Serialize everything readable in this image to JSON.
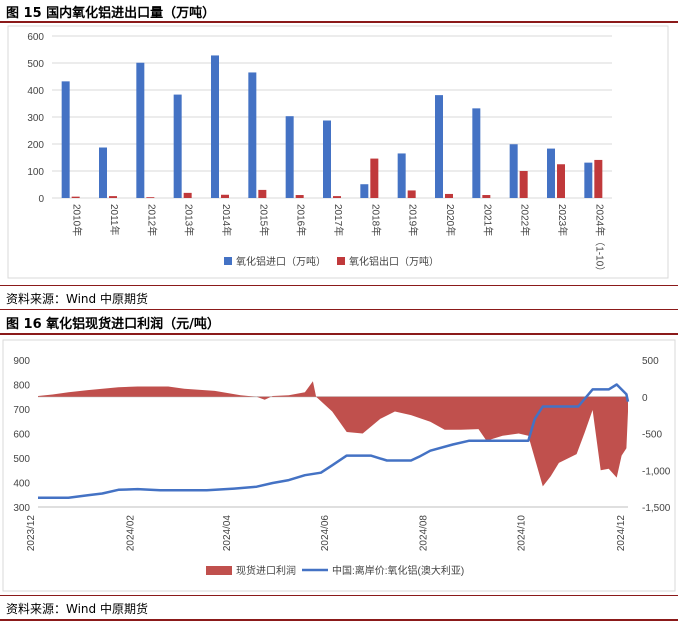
{
  "fig15": {
    "title": "图 15  国内氧化铝进出口量（万吨）",
    "source": "资料来源：Wind 中原期货"
  },
  "fig16": {
    "title": "图 16  氧化铝现货进口利润（元/吨）",
    "source": "资料来源：Wind 中原期货"
  },
  "colors": {
    "rule": "#8b1a1a",
    "blue": "#4472c4",
    "red": "#c0393b",
    "area": "#c0504d"
  },
  "chart_data": [
    {
      "type": "bar",
      "categories": [
        "2010年",
        "2011年",
        "2012年",
        "2013年",
        "2014年",
        "2015年",
        "2016年",
        "2017年",
        "2018年",
        "2019年",
        "2020年",
        "2021年",
        "2022年",
        "2023年",
        "2024年（1-10）"
      ],
      "series": [
        {
          "name": "氧化铝进口（万吨）",
          "values": [
            432,
            187,
            501,
            383,
            528,
            465,
            303,
            287,
            51,
            165,
            381,
            332,
            199,
            183,
            131
          ]
        },
        {
          "name": "氧化铝出口（万吨）",
          "values": [
            5,
            7,
            3,
            19,
            12,
            30,
            11,
            7,
            146,
            28,
            15,
            11,
            100,
            125,
            141
          ]
        }
      ],
      "ylim": [
        0,
        600
      ],
      "yticks": [
        0,
        100,
        200,
        300,
        400,
        500,
        600
      ],
      "legend": "bottom",
      "grid": true
    },
    {
      "type": "area+line",
      "x_ticks": [
        "2023/12",
        "2024/02",
        "2024/04",
        "2024/06",
        "2024/08",
        "2024/10",
        "2024/12"
      ],
      "left_axis": {
        "range": [
          300,
          900
        ],
        "ticks": [
          300,
          400,
          500,
          600,
          700,
          800,
          900
        ]
      },
      "right_axis": {
        "range": [
          -1500,
          500
        ],
        "ticks": [
          "500",
          "0",
          "-500",
          "-1,000",
          "-1,500"
        ]
      },
      "series": [
        {
          "name": "现货进口利润",
          "type": "area",
          "axis": "right",
          "points": [
            [
              "2023-12-01",
              10
            ],
            [
              "2023-12-10",
              30
            ],
            [
              "2023-12-20",
              60
            ],
            [
              "2024-01-01",
              90
            ],
            [
              "2024-01-20",
              130
            ],
            [
              "2024-02-01",
              140
            ],
            [
              "2024-02-20",
              140
            ],
            [
              "2024-03-01",
              110
            ],
            [
              "2024-03-20",
              80
            ],
            [
              "2024-04-05",
              20
            ],
            [
              "2024-04-15",
              0
            ],
            [
              "2024-04-20",
              -40
            ],
            [
              "2024-04-25",
              10
            ],
            [
              "2024-05-05",
              20
            ],
            [
              "2024-05-15",
              60
            ],
            [
              "2024-05-20",
              210
            ],
            [
              "2024-05-22",
              0
            ],
            [
              "2024-06-01",
              -200
            ],
            [
              "2024-06-10",
              -480
            ],
            [
              "2024-06-20",
              -500
            ],
            [
              "2024-07-01",
              -300
            ],
            [
              "2024-07-10",
              -200
            ],
            [
              "2024-07-20",
              -250
            ],
            [
              "2024-08-01",
              -340
            ],
            [
              "2024-08-10",
              -450
            ],
            [
              "2024-08-20",
              -450
            ],
            [
              "2024-08-31",
              -440
            ],
            [
              "2024-09-05",
              -600
            ],
            [
              "2024-09-15",
              -530
            ],
            [
              "2024-09-25",
              -500
            ],
            [
              "2024-10-01",
              -530
            ],
            [
              "2024-10-10",
              -1220
            ],
            [
              "2024-10-15",
              -1080
            ],
            [
              "2024-10-20",
              -900
            ],
            [
              "2024-10-31",
              -780
            ],
            [
              "2024-11-05",
              -490
            ],
            [
              "2024-11-10",
              -180
            ],
            [
              "2024-11-15",
              -1000
            ],
            [
              "2024-11-20",
              -980
            ],
            [
              "2024-11-25",
              -1100
            ],
            [
              "2024-11-28",
              -800
            ],
            [
              "2024-12-01",
              -700
            ],
            [
              "2024-12-02",
              -200
            ]
          ]
        },
        {
          "name": "中国:离岸价:氧化铝(澳大利亚)",
          "type": "line",
          "axis": "left",
          "points": [
            [
              "2023-12-01",
              338
            ],
            [
              "2023-12-20",
              338
            ],
            [
              "2024-01-01",
              348
            ],
            [
              "2024-01-10",
              355
            ],
            [
              "2024-01-20",
              370
            ],
            [
              "2024-02-01",
              373
            ],
            [
              "2024-02-15",
              368
            ],
            [
              "2024-03-01",
              368
            ],
            [
              "2024-03-15",
              368
            ],
            [
              "2024-04-01",
              375
            ],
            [
              "2024-04-15",
              383
            ],
            [
              "2024-04-25",
              398
            ],
            [
              "2024-05-05",
              410
            ],
            [
              "2024-05-15",
              430
            ],
            [
              "2024-05-25",
              440
            ],
            [
              "2024-06-01",
              470
            ],
            [
              "2024-06-10",
              510
            ],
            [
              "2024-06-25",
              510
            ],
            [
              "2024-07-05",
              490
            ],
            [
              "2024-07-20",
              490
            ],
            [
              "2024-07-25",
              505
            ],
            [
              "2024-08-01",
              530
            ],
            [
              "2024-08-15",
              555
            ],
            [
              "2024-08-25",
              570
            ],
            [
              "2024-09-01",
              570
            ],
            [
              "2024-09-20",
              570
            ],
            [
              "2024-10-01",
              570
            ],
            [
              "2024-10-05",
              660
            ],
            [
              "2024-10-10",
              710
            ],
            [
              "2024-10-20",
              710
            ],
            [
              "2024-11-01",
              710
            ],
            [
              "2024-11-10",
              780
            ],
            [
              "2024-11-20",
              780
            ],
            [
              "2024-11-25",
              800
            ],
            [
              "2024-12-01",
              760
            ],
            [
              "2024-12-02",
              730
            ]
          ]
        }
      ],
      "legend": "bottom"
    }
  ]
}
